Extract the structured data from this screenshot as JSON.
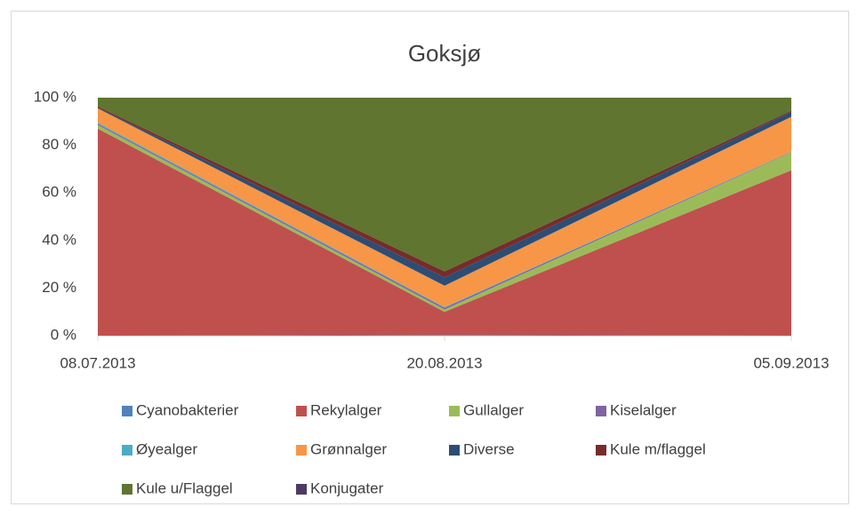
{
  "chart_data": {
    "type": "stacked_area",
    "title": "Goksjø",
    "categories": [
      "08.07.2013",
      "20.08.2013",
      "05.09.2013"
    ],
    "ylim": [
      0,
      100
    ],
    "yticks": [
      {
        "value": 0,
        "label": "0 %"
      },
      {
        "value": 20,
        "label": "20 %"
      },
      {
        "value": 40,
        "label": "40 %"
      },
      {
        "value": 60,
        "label": "60 %"
      },
      {
        "value": 80,
        "label": "80 %"
      },
      {
        "value": 100,
        "label": "100 %"
      }
    ],
    "legend": "bottom",
    "series": [
      {
        "name": "Cyanobakterier",
        "color": "#4f81bd",
        "values": [
          0,
          0.3,
          0
        ]
      },
      {
        "name": "Rekylalger",
        "color": "#c0504d",
        "values": [
          87,
          9.7,
          69.5
        ]
      },
      {
        "name": "Gullalger",
        "color": "#9bbb59",
        "values": [
          1.5,
          1,
          7.5
        ]
      },
      {
        "name": "Kiselalger",
        "color": "#8064a2",
        "values": [
          0.5,
          0.7,
          0.2
        ]
      },
      {
        "name": "Øyealger",
        "color": "#4bacc6",
        "values": [
          0.5,
          0.3,
          0.1
        ]
      },
      {
        "name": "Grønnalger",
        "color": "#f79646",
        "values": [
          6,
          9,
          14.7
        ]
      },
      {
        "name": "Diverse",
        "color": "#2c4d75",
        "values": [
          0.3,
          3.5,
          2
        ]
      },
      {
        "name": "Kule m/flaggel",
        "color": "#772c2a",
        "values": [
          0.5,
          2.5,
          0.5
        ]
      },
      {
        "name": "Kule u/Flaggel",
        "color": "#5f7530",
        "values": [
          3.7,
          73,
          5.5
        ]
      },
      {
        "name": "Konjugater",
        "color": "#4d3b62",
        "values": [
          0,
          0,
          0
        ]
      }
    ]
  }
}
